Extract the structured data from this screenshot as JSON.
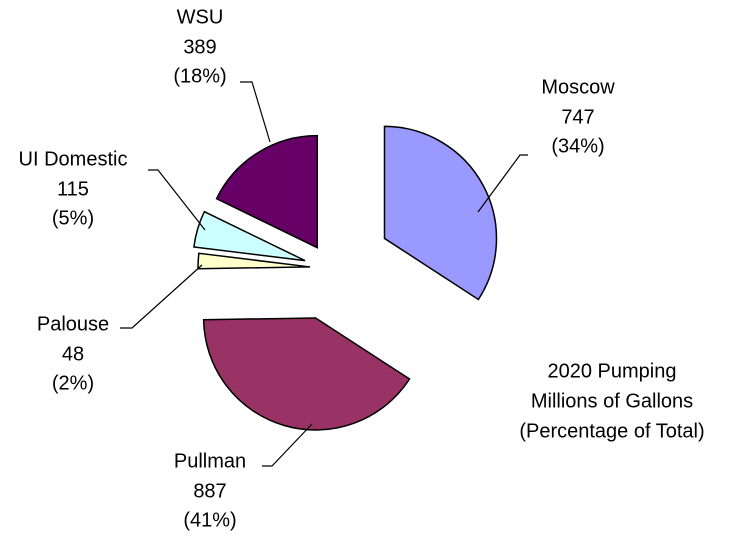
{
  "chart_data": {
    "type": "pie",
    "title": [
      "2020 Pumping",
      "Millions of Gallons",
      "(Percentage of Total)"
    ],
    "categories": [
      "Moscow",
      "Pullman",
      "Palouse",
      "UI Domestic",
      "WSU"
    ],
    "values": [
      747,
      887,
      48,
      115,
      389
    ],
    "percentages": [
      {
        "value": 34,
        "label": "(34%)"
      },
      {
        "value": 41,
        "label": "(41%)"
      },
      {
        "value": 2,
        "label": "(2%)"
      },
      {
        "value": 5,
        "label": "(5%)"
      },
      {
        "value": 18,
        "label": "(18%)"
      }
    ],
    "colors": [
      "#9999ff",
      "#993366",
      "#ffffcc",
      "#ccffff",
      "#660066"
    ]
  }
}
